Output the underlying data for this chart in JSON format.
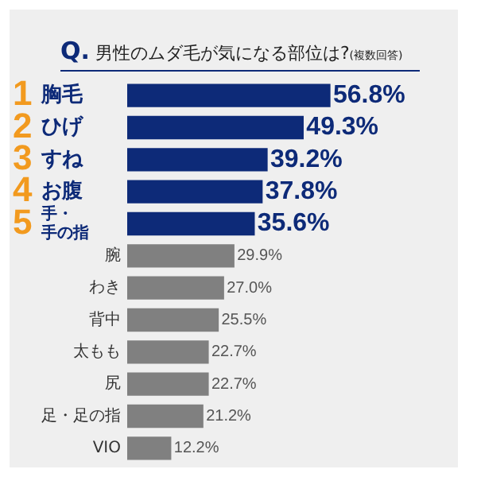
{
  "chart_data": {
    "type": "bar",
    "orientation": "horizontal",
    "title": "Q. 男性のムダ毛が気になる部位は?",
    "subtitle": "(複数回答)",
    "categories": [
      "1 胸毛",
      "2 ひげ",
      "3 すね",
      "4 お腹",
      "5 手・手の指",
      "腕",
      "わき",
      "背中",
      "太もも",
      "尻",
      "足・足の指",
      "VIO"
    ],
    "values": [
      56.8,
      49.3,
      39.2,
      37.8,
      35.6,
      29.9,
      27.0,
      25.5,
      22.7,
      22.7,
      21.2,
      12.2
    ],
    "colors": [
      "#0d2a78",
      "#0d2a78",
      "#0d2a78",
      "#0d2a78",
      "#0d2a78",
      "#808080",
      "#808080",
      "#808080",
      "#808080",
      "#808080",
      "#808080",
      "#808080"
    ],
    "value_labels": [
      "56.8%",
      "49.3%",
      "39.2%",
      "37.8%",
      "35.6%",
      "29.9%",
      "27.0%",
      "25.5%",
      "22.7%",
      "22.7%",
      "21.2%",
      "12.2%"
    ],
    "legend": false
  }
}
